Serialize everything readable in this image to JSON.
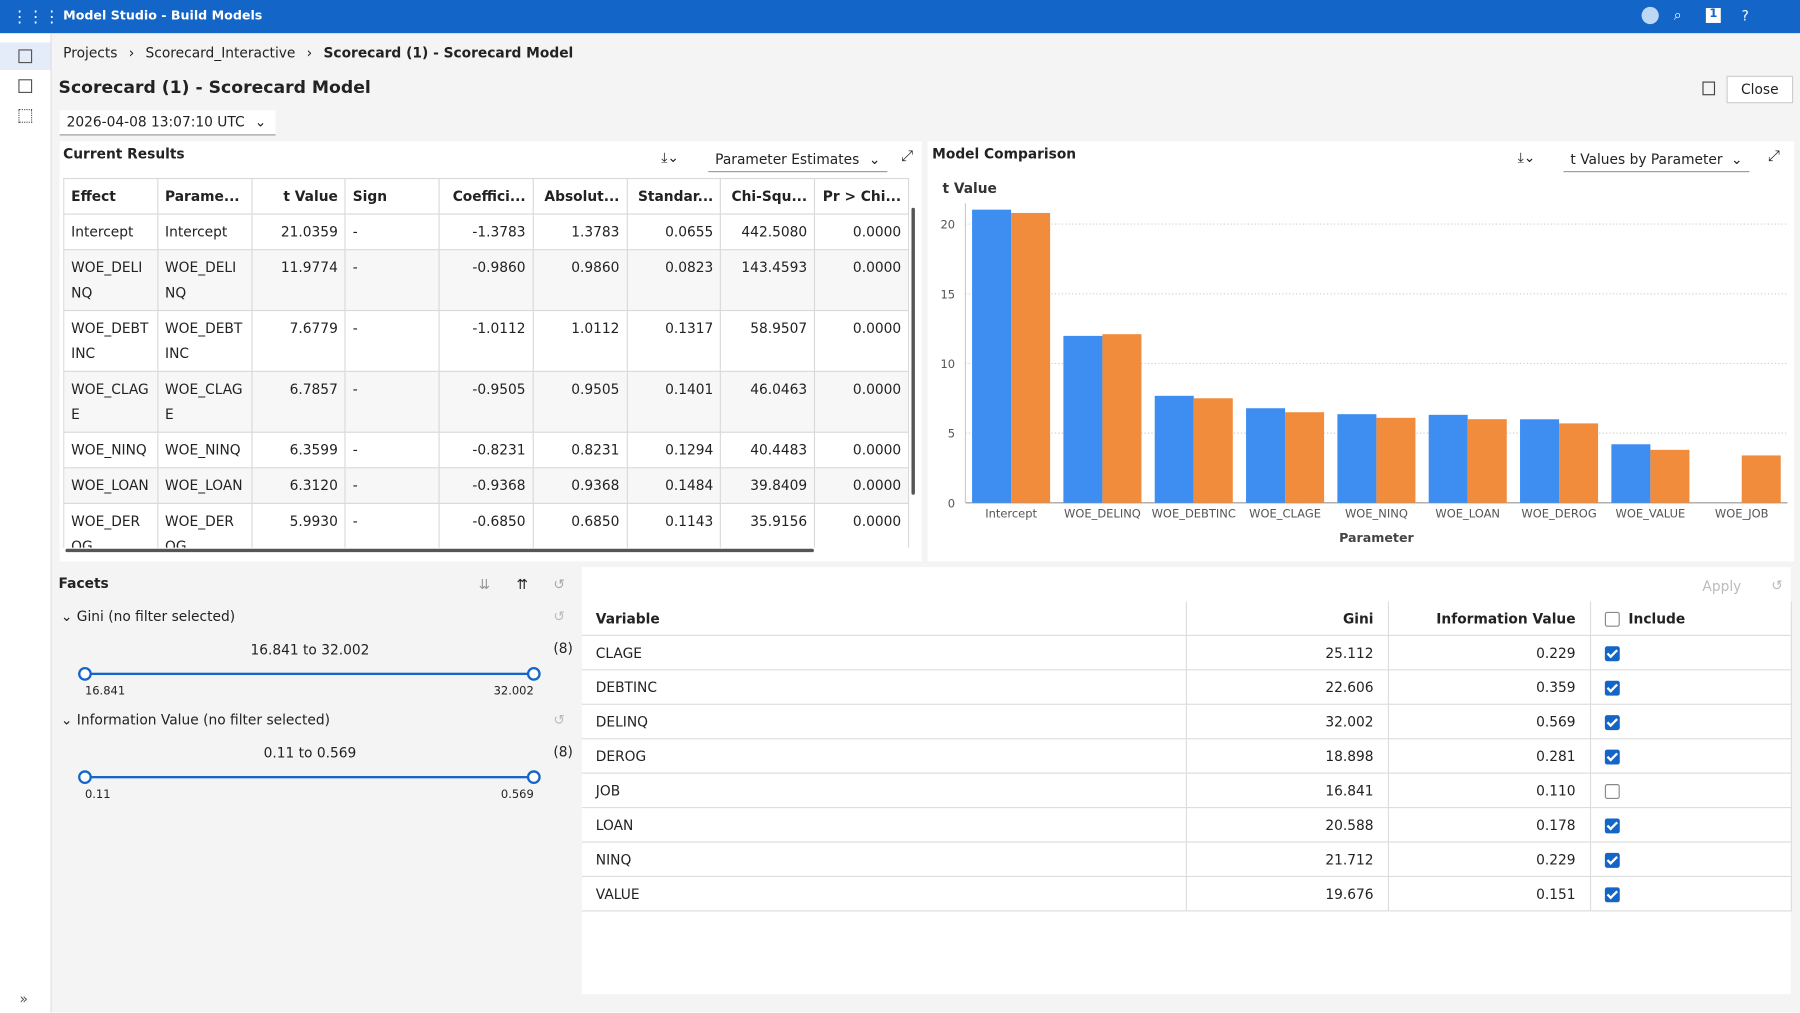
{
  "header": {
    "title": "Model Studio - Build Models",
    "user": "1",
    "help": "?"
  },
  "breadcrumb": [
    "Projects",
    "Scorecard_Interactive",
    "Scorecard (1) - Scorecard Model"
  ],
  "page_title": "Scorecard (1) - Scorecard Model",
  "close": "Close",
  "timestamp": "2026-04-08 13:07:10 UTC",
  "current_results": {
    "title": "Current Results",
    "view": "Parameter Estimates",
    "columns": [
      "Effect",
      "Parame...",
      "t Value",
      "Sign",
      "Coeffici...",
      "Absolut...",
      "Standar...",
      "Chi-Squ...",
      "Pr > Chi..."
    ],
    "rows": [
      [
        "Intercept",
        "Intercept",
        "21.0359",
        "-",
        "-1.3783",
        "1.3783",
        "0.0655",
        "442.5080",
        "0.0000"
      ],
      [
        "WOE_DELINQ",
        "WOE_DELINQ",
        "11.9774",
        "-",
        "-0.9860",
        "0.9860",
        "0.0823",
        "143.4593",
        "0.0000"
      ],
      [
        "WOE_DEBTINC",
        "WOE_DEBTINC",
        "7.6779",
        "-",
        "-1.0112",
        "1.0112",
        "0.1317",
        "58.9507",
        "0.0000"
      ],
      [
        "WOE_CLAGE",
        "WOE_CLAGE",
        "6.7857",
        "-",
        "-0.9505",
        "0.9505",
        "0.1401",
        "46.0463",
        "0.0000"
      ],
      [
        "WOE_NINQ",
        "WOE_NINQ",
        "6.3599",
        "-",
        "-0.8231",
        "0.8231",
        "0.1294",
        "40.4483",
        "0.0000"
      ],
      [
        "WOE_LOAN",
        "WOE_LOAN",
        "6.3120",
        "-",
        "-0.9368",
        "0.9368",
        "0.1484",
        "39.8409",
        "0.0000"
      ],
      [
        "WOE_DEROG",
        "WOE_DEROG",
        "5.9930",
        "-",
        "-0.6850",
        "0.6850",
        "0.1143",
        "35.9156",
        "0.0000"
      ]
    ]
  },
  "chart_panel": {
    "title": "Model Comparison",
    "view": "t Values by Parameter"
  },
  "chart_data": {
    "type": "bar",
    "y_label": "t Value",
    "x_label": "Parameter",
    "categories": [
      "Intercept",
      "WOE_DELINQ",
      "WOE_DEBTINC",
      "WOE_CLAGE",
      "WOE_NINQ",
      "WOE_LOAN",
      "WOE_DEROG",
      "WOE_VALUE",
      "WOE_JOB"
    ],
    "series": [
      {
        "color": "#3d8ef0",
        "values": [
          21.0359,
          11.9774,
          7.6779,
          6.7857,
          6.3599,
          6.312,
          5.993,
          4.2,
          null
        ]
      },
      {
        "color": "#f08c3c",
        "values": [
          20.8,
          12.1,
          7.5,
          6.5,
          6.1,
          6.0,
          5.7,
          3.8,
          3.4
        ]
      }
    ],
    "ylim": [
      0,
      21.5
    ],
    "yticks": [
      0,
      5,
      10,
      15,
      20
    ],
    "grid": true
  },
  "facets": {
    "title": "Facets",
    "filters": [
      {
        "label": "Gini",
        "status": "(no filter selected)",
        "range_text": "16.841 to 32.002",
        "count": "(8)",
        "min": "16.841",
        "max": "32.002"
      },
      {
        "label": "Information Value",
        "status": "(no filter selected)",
        "range_text": "0.11 to 0.569",
        "count": "(8)",
        "min": "0.11",
        "max": "0.569"
      }
    ]
  },
  "variables": {
    "apply": "Apply",
    "columns": [
      "Variable",
      "Gini",
      "Information Value",
      "Include"
    ],
    "rows": [
      [
        "CLAGE",
        "25.112",
        "0.229",
        true
      ],
      [
        "DEBTINC",
        "22.606",
        "0.359",
        true
      ],
      [
        "DELINQ",
        "32.002",
        "0.569",
        true
      ],
      [
        "DEROG",
        "18.898",
        "0.281",
        true
      ],
      [
        "JOB",
        "16.841",
        "0.110",
        false
      ],
      [
        "LOAN",
        "20.588",
        "0.178",
        true
      ],
      [
        "NINQ",
        "21.712",
        "0.229",
        true
      ],
      [
        "VALUE",
        "19.676",
        "0.151",
        true
      ]
    ]
  }
}
